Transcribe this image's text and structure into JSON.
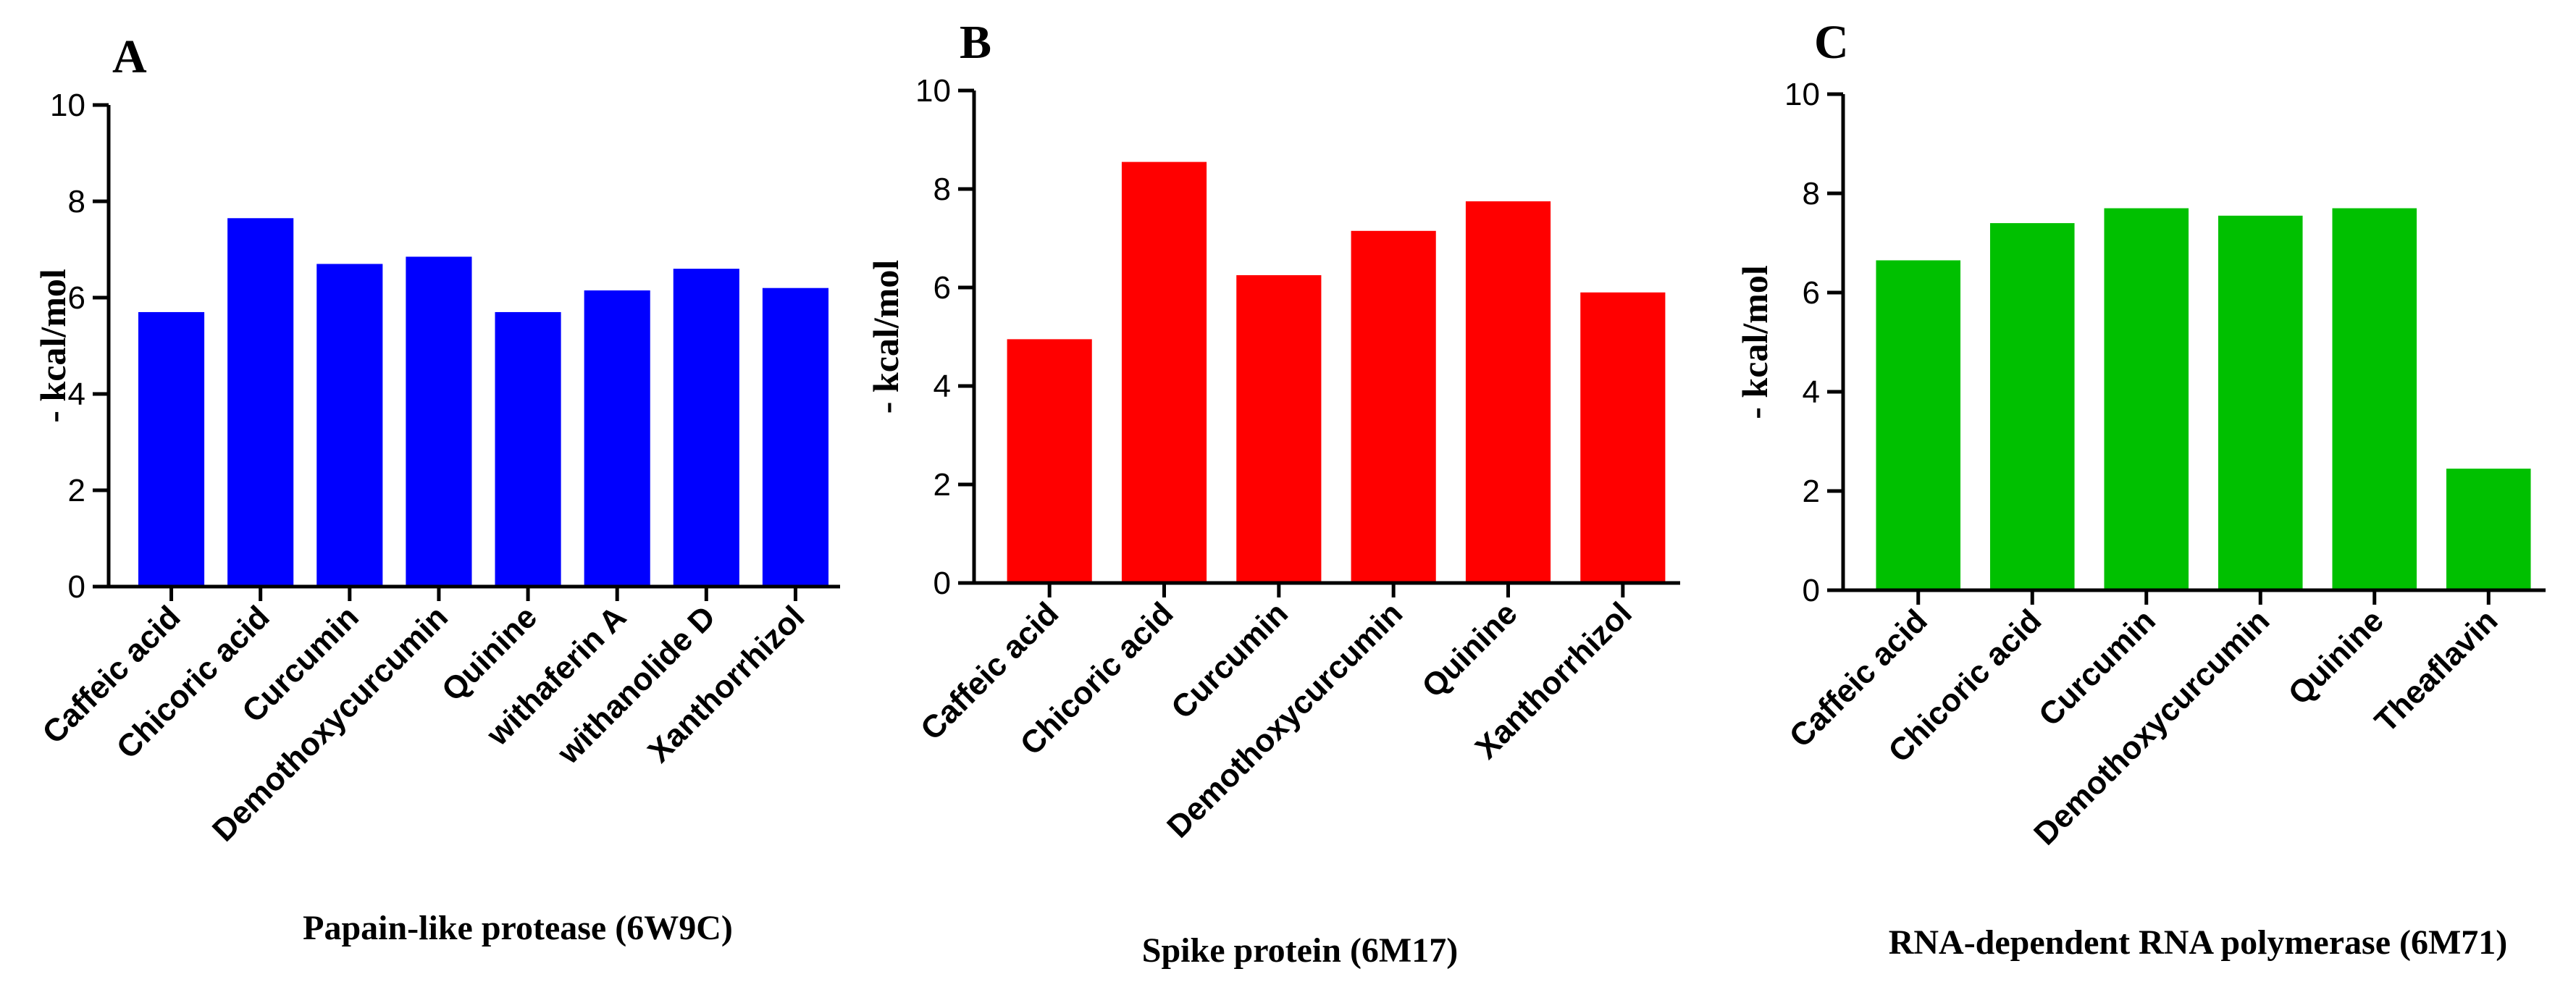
{
  "chart_data": [
    {
      "type": "bar",
      "panel": "A",
      "color": "#0000ff",
      "ylabel": "- kcal/mol",
      "xlabel": "Papain-like protease (6W9C)",
      "ylim": [
        0,
        10
      ],
      "yticks": [
        "0",
        "2",
        "4",
        "6",
        "8",
        "10"
      ],
      "categories": [
        "Caffeic acid",
        "Chicoric acid",
        "Curcumin",
        "Demothoxycurcumin",
        "Quinine",
        "withaferin A",
        "withanolide D",
        "Xanthorrhizol"
      ],
      "values": [
        5.7,
        7.65,
        6.7,
        6.85,
        5.7,
        6.15,
        6.6,
        6.2
      ]
    },
    {
      "type": "bar",
      "panel": "B",
      "color": "#ff0000",
      "ylabel": "- kcal/mol",
      "xlabel": "Spike protein (6M17)",
      "ylim": [
        0,
        10
      ],
      "yticks": [
        "0",
        "2",
        "4",
        "6",
        "8",
        "10"
      ],
      "categories": [
        "Caffeic acid",
        "Chicoric acid",
        "Curcumin",
        "Demothoxycurcumin",
        "Quinine",
        "Xanthorrhizol"
      ],
      "values": [
        4.95,
        8.55,
        6.25,
        7.15,
        7.75,
        5.9
      ]
    },
    {
      "type": "bar",
      "panel": "C",
      "color": "#00c000",
      "ylabel": "- kcal/mol",
      "xlabel": "RNA-dependent RNA polymerase (6M71)",
      "ylim": [
        0,
        10
      ],
      "yticks": [
        "0",
        "2",
        "4",
        "6",
        "8",
        "10"
      ],
      "categories": [
        "Caffeic acid",
        "Chicoric acid",
        "Curcumin",
        "Demothoxycurcumin",
        "Quinine",
        "Theaflavin"
      ],
      "values": [
        6.65,
        7.4,
        7.7,
        7.55,
        7.7,
        2.45
      ]
    }
  ]
}
